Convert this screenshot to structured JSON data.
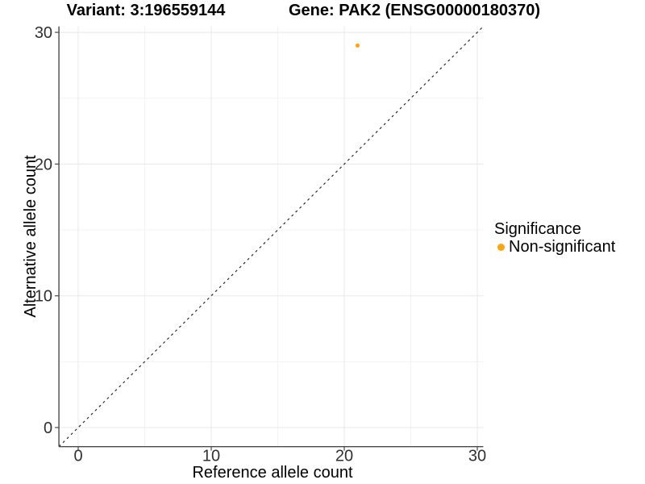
{
  "titles": {
    "variant": "Variant: 3:196559144",
    "gene": "Gene: PAK2 (ENSG00000180370)"
  },
  "legend": {
    "title": "Significance",
    "items": [
      {
        "label": "Non-significant",
        "color": "#FFA411"
      }
    ]
  },
  "chart_data": {
    "type": "scatter",
    "title": "Variant: 3:196559144 — Gene: PAK2 (ENSG00000180370)",
    "xlabel": "Reference allele count",
    "ylabel": "Alternative allele count",
    "xlim": [
      -1.45,
      30.45
    ],
    "ylim": [
      -1.45,
      30.45
    ],
    "xticks": [
      0,
      10,
      20,
      30
    ],
    "yticks": [
      0,
      10,
      20,
      30
    ],
    "minor_xticks": [
      5,
      15,
      25
    ],
    "minor_yticks": [
      5,
      15,
      25
    ],
    "grid": "major+minor",
    "legend_position": "right",
    "series": [
      {
        "name": "Non-significant",
        "color": "#FFA411",
        "points": [
          [
            21,
            29
          ]
        ]
      }
    ],
    "reference_line": {
      "equation": "y = x",
      "style": "dashed",
      "color": "#1a1a1a"
    }
  },
  "colors": {
    "background": "#ffffff",
    "grid_major": "#e8e8e8",
    "grid_minor": "#f3f3f3",
    "axis_line": "#4a4a4a",
    "tick_label": "#303030",
    "axis_title": "#000000",
    "point": "#FFA411"
  }
}
